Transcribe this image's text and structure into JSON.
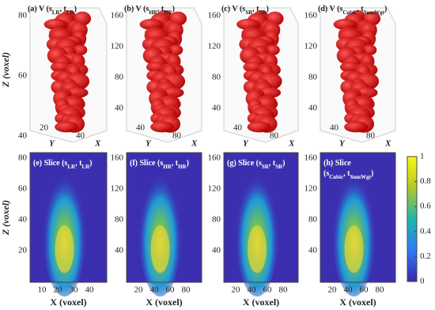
{
  "z_label": "Z (voxel)",
  "x_label": "X (voxel)",
  "top_panels": [
    {
      "title": [
        [
          {
            "text": "(a) V (s"
          },
          {
            "sub": "LR"
          },
          {
            "text": ", t"
          },
          {
            "sub": "LR"
          },
          {
            "text": ")"
          }
        ]
      ],
      "z_ticks": [
        80,
        60,
        40
      ],
      "base_labels": [
        "20",
        "Y",
        "40",
        "X"
      ]
    },
    {
      "title": [
        [
          {
            "text": "(b) V (s"
          },
          {
            "sub": "HR"
          },
          {
            "text": ", t"
          },
          {
            "sub": "HR"
          },
          {
            "text": ")"
          }
        ]
      ],
      "z_ticks": [
        160,
        120,
        80,
        40
      ],
      "base_labels": [
        "40",
        "Y",
        "80",
        "X"
      ]
    },
    {
      "title": [
        [
          {
            "text": "(c) V (s"
          },
          {
            "sub": "SR"
          },
          {
            "text": ", t"
          },
          {
            "sub": "SR"
          },
          {
            "text": ")"
          }
        ]
      ],
      "z_ticks": [
        160,
        120,
        80,
        40
      ],
      "base_labels": [
        "40",
        "Y",
        "80",
        "X"
      ]
    },
    {
      "title": [
        [
          {
            "text": "(d) V (s"
          },
          {
            "sub": "Cubic"
          },
          {
            "text": ", t"
          },
          {
            "sub": "SumWgt"
          },
          {
            "text": ")"
          }
        ]
      ],
      "z_ticks": [
        160,
        120,
        80,
        40
      ],
      "base_labels": [
        "40",
        "Y",
        "80",
        "X"
      ]
    }
  ],
  "bottom_panels": [
    {
      "title": [
        [
          {
            "text": "(e) Slice (s"
          },
          {
            "sub": "LR"
          },
          {
            "text": ", t"
          },
          {
            "sub": "LR"
          },
          {
            "text": ")"
          }
        ]
      ],
      "y_ticks": [
        80,
        60,
        40,
        20
      ],
      "x_ticks": [
        10,
        20,
        30,
        40
      ]
    },
    {
      "title": [
        [
          {
            "text": "(f) Slice (s"
          },
          {
            "sub": "HR"
          },
          {
            "text": ", t"
          },
          {
            "sub": "HR"
          },
          {
            "text": ")"
          }
        ]
      ],
      "y_ticks": [
        160,
        120,
        80,
        40
      ],
      "x_ticks": [
        20,
        40,
        60,
        80
      ]
    },
    {
      "title": [
        [
          {
            "text": "(g) Slice (s"
          },
          {
            "sub": "SR"
          },
          {
            "text": ", t"
          },
          {
            "sub": "SR"
          },
          {
            "text": ")"
          }
        ]
      ],
      "y_ticks": [
        160,
        120,
        80,
        40
      ],
      "x_ticks": [
        20,
        40,
        60,
        80
      ]
    },
    {
      "title": [
        [
          {
            "text": "(h) Slice"
          }
        ],
        [
          {
            "text": "(s"
          },
          {
            "sub": "Cubic"
          },
          {
            "text": ", t"
          },
          {
            "sub": "SumWgt"
          },
          {
            "text": ")"
          }
        ]
      ],
      "y_ticks": [
        160,
        120,
        80,
        40
      ],
      "x_ticks": [
        20,
        40,
        60,
        80
      ]
    }
  ],
  "colorbar_ticks": [
    1,
    0.8,
    0.6,
    0.4,
    0.2,
    0
  ]
}
